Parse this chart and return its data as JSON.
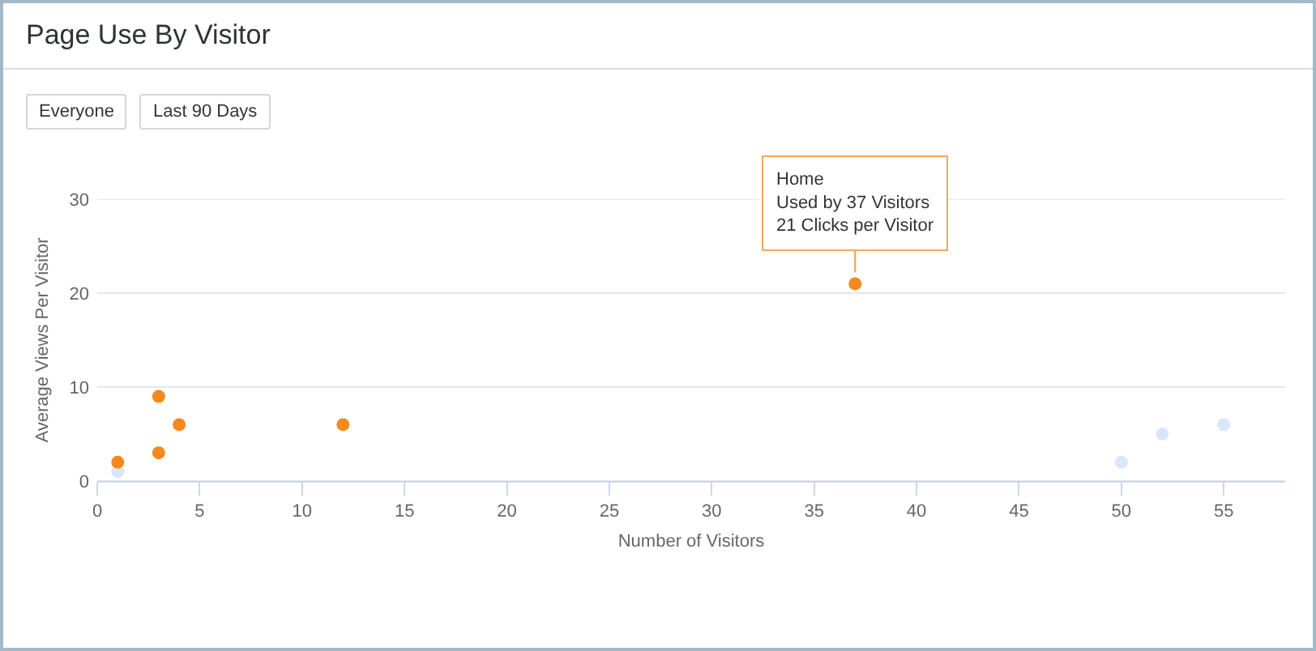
{
  "chart_data": {
    "type": "scatter",
    "title": "Page Use By Visitor",
    "xlabel": "Number of Visitors",
    "ylabel": "Average Views Per Visitor",
    "series": [
      {
        "color": "#d9e6fc",
        "x": [
          1,
          50,
          52,
          55
        ],
        "values": [
          1,
          2,
          5,
          6
        ]
      },
      {
        "color": "#f5891f",
        "x": [
          1,
          3,
          3,
          4,
          12,
          37
        ],
        "values": [
          2,
          9,
          3,
          6,
          6,
          21
        ]
      }
    ],
    "xlim": [
      0,
      58
    ],
    "xticks": [
      0,
      5,
      10,
      15,
      20,
      25,
      30,
      35,
      40,
      45,
      50,
      55
    ],
    "ylim": [
      0,
      30
    ],
    "yticks": [
      0,
      10,
      20,
      30
    ],
    "grid": "y",
    "marker": "circle",
    "annotations": [
      "Everyone",
      "Last 90 Days",
      {
        "text": "Home\nUsed by 37 Visitors\n21 Clicks per Visitor",
        "x": 37,
        "y": 21
      }
    ]
  }
}
